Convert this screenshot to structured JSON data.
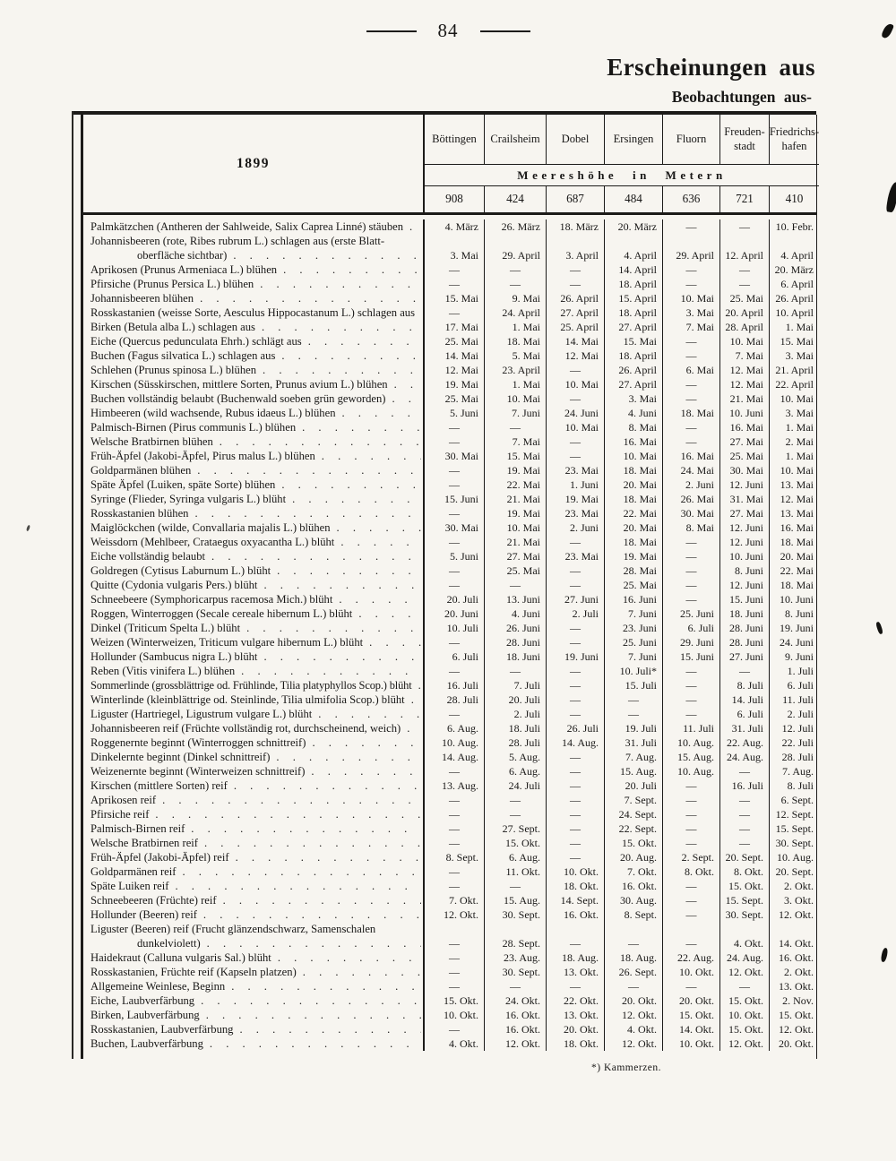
{
  "page": {
    "number": "84",
    "heading": "Erscheinungen aus",
    "subheading": "Beobachtungen aus-",
    "footnote": "*) Kammerzen."
  },
  "table": {
    "year": "1899",
    "elevation_title": "Meereshöhe in Metern",
    "stations": [
      "Böttingen",
      "Crailsheim",
      "Dobel",
      "Ersingen",
      "Fluorn",
      "Freuden-\nstadt",
      "Friedrichs-\nhafen"
    ],
    "elevations": [
      "908",
      "424",
      "687",
      "484",
      "636",
      "721",
      "410"
    ],
    "rows": [
      {
        "label": "Palmkätzchen (Antheren der Sahlweide, Salix Caprea Linné) stäuben",
        "dates": [
          "4. März",
          "26. März",
          "18. März",
          "20. März",
          "—",
          "—",
          "10. Febr."
        ]
      },
      {
        "label": "Johannisbeeren (rote, Ribes rubrum L.) schlagen aus (erste Blatt-",
        "label2": "oberfläche sichtbar)",
        "dates": [
          "3. Mai",
          "29. April",
          "3. April",
          "4. April",
          "29. April",
          "12. April",
          "4. April"
        ]
      },
      {
        "label": "Aprikosen (Prunus Armeniaca L.) blühen",
        "dates": [
          "—",
          "—",
          "—",
          "14. April",
          "—",
          "—",
          "20. März"
        ]
      },
      {
        "label": "Pfirsiche (Prunus Persica L.) blühen",
        "dates": [
          "—",
          "—",
          "—",
          "18. April",
          "—",
          "—",
          "6. April"
        ]
      },
      {
        "label": "Johannisbeeren blühen",
        "dates": [
          "15. Mai",
          "9. Mai",
          "26. April",
          "15. April",
          "10. Mai",
          "25. Mai",
          "26. April"
        ]
      },
      {
        "label": "Rosskastanien (weisse Sorte, Aesculus Hippocastanum L.) schlagen aus",
        "dates": [
          "—",
          "24. April",
          "27. April",
          "18. April",
          "3. Mai",
          "20. April",
          "10. April"
        ]
      },
      {
        "label": "Birken (Betula alba L.) schlagen aus",
        "dates": [
          "17. Mai",
          "1. Mai",
          "25. April",
          "27. April",
          "7. Mai",
          "28. April",
          "1. Mai"
        ]
      },
      {
        "label": "Eiche (Quercus pedunculata Ehrh.) schlägt aus",
        "dates": [
          "25. Mai",
          "18. Mai",
          "14. Mai",
          "15. Mai",
          "—",
          "10. Mai",
          "15. Mai"
        ]
      },
      {
        "label": "Buchen (Fagus silvatica L.) schlagen aus",
        "dates": [
          "14. Mai",
          "5. Mai",
          "12. Mai",
          "18. April",
          "—",
          "7. Mai",
          "3. Mai"
        ]
      },
      {
        "label": "Schlehen (Prunus spinosa L.) blühen",
        "dates": [
          "12. Mai",
          "23. April",
          "—",
          "26. April",
          "6. Mai",
          "12. Mai",
          "21. April"
        ]
      },
      {
        "label": "Kirschen (Süsskirschen, mittlere Sorten, Prunus avium L.) blühen",
        "dates": [
          "19. Mai",
          "1. Mai",
          "10. Mai",
          "27. April",
          "—",
          "12. Mai",
          "22. April"
        ]
      },
      {
        "label": "Buchen vollständig belaubt (Buchenwald soeben grün geworden)",
        "dates": [
          "25. Mai",
          "10. Mai",
          "—",
          "3. Mai",
          "—",
          "21. Mai",
          "10. Mai"
        ]
      },
      {
        "label": "Himbeeren (wild wachsende, Rubus idaeus L.) blühen",
        "dates": [
          "5. Juni",
          "7. Juni",
          "24. Juni",
          "4. Juni",
          "18. Mai",
          "10. Juni",
          "3. Mai"
        ]
      },
      {
        "label": "Palmisch-Birnen (Pirus communis L.) blühen",
        "dates": [
          "—",
          "—",
          "10. Mai",
          "8. Mai",
          "—",
          "16. Mai",
          "1. Mai"
        ]
      },
      {
        "label": "Welsche Bratbirnen blühen",
        "dates": [
          "—",
          "7. Mai",
          "—",
          "16. Mai",
          "—",
          "27. Mai",
          "2. Mai"
        ]
      },
      {
        "label": "Früh-Äpfel (Jakobi-Äpfel, Pirus malus L.) blühen",
        "dates": [
          "30. Mai",
          "15. Mai",
          "—",
          "10. Mai",
          "16. Mai",
          "25. Mai",
          "1. Mai"
        ]
      },
      {
        "label": "Goldparmänen blühen",
        "dates": [
          "—",
          "19. Mai",
          "23. Mai",
          "18. Mai",
          "24. Mai",
          "30. Mai",
          "10. Mai"
        ]
      },
      {
        "label": "Späte Äpfel (Luiken, späte Sorte) blühen",
        "dates": [
          "—",
          "22. Mai",
          "1. Juni",
          "20. Mai",
          "2. Juni",
          "12. Juni",
          "13. Mai"
        ]
      },
      {
        "label": "Syringe (Flieder, Syringa vulgaris L.) blüht",
        "dates": [
          "15. Juni",
          "21. Mai",
          "19. Mai",
          "18. Mai",
          "26. Mai",
          "31. Mai",
          "12. Mai"
        ]
      },
      {
        "label": "Rosskastanien blühen",
        "dates": [
          "—",
          "19. Mai",
          "23. Mai",
          "22. Mai",
          "30. Mai",
          "27. Mai",
          "13. Mai"
        ]
      },
      {
        "label": "Maiglöckchen (wilde, Convallaria majalis L.) blühen",
        "dates": [
          "30. Mai",
          "10. Mai",
          "2. Juni",
          "20. Mai",
          "8. Mai",
          "12. Juni",
          "16. Mai"
        ]
      },
      {
        "label": "Weissdorn (Mehlbeer, Crataegus oxyacantha L.) blüht",
        "dates": [
          "—",
          "21. Mai",
          "—",
          "18. Mai",
          "—",
          "12. Juni",
          "18. Mai"
        ]
      },
      {
        "label": "Eiche vollständig belaubt",
        "dates": [
          "5. Juni",
          "27. Mai",
          "23. Mai",
          "19. Mai",
          "—",
          "10. Juni",
          "20. Mai"
        ]
      },
      {
        "label": "Goldregen (Cytisus Laburnum L.) blüht",
        "dates": [
          "—",
          "25. Mai",
          "—",
          "28. Mai",
          "—",
          "8. Juni",
          "22. Mai"
        ]
      },
      {
        "label": "Quitte (Cydonia vulgaris Pers.) blüht",
        "dates": [
          "—",
          "—",
          "—",
          "25. Mai",
          "—",
          "12. Juni",
          "18. Mai"
        ]
      },
      {
        "label": "Schneebeere (Symphoricarpus racemosa Mich.) blüht",
        "dates": [
          "20. Juli",
          "13. Juni",
          "27. Juni",
          "16. Juni",
          "—",
          "15. Juni",
          "10. Juni"
        ]
      },
      {
        "label": "Roggen, Winterroggen (Secale cereale hibernum L.) blüht",
        "dates": [
          "20. Juni",
          "4. Juni",
          "2. Juli",
          "7. Juni",
          "25. Juni",
          "18. Juni",
          "8. Juni"
        ]
      },
      {
        "label": "Dinkel (Triticum Spelta L.) blüht",
        "dates": [
          "10. Juli",
          "26. Juni",
          "—",
          "23. Juni",
          "6. Juli",
          "28. Juni",
          "19. Juni"
        ]
      },
      {
        "label": "Weizen (Winterweizen, Triticum vulgare hibernum L.) blüht",
        "dates": [
          "—",
          "28. Juni",
          "—",
          "25. Juni",
          "29. Juni",
          "28. Juni",
          "24. Juni"
        ]
      },
      {
        "label": "Hollunder (Sambucus nigra L.) blüht",
        "dates": [
          "6. Juli",
          "18. Juni",
          "19. Juni",
          "7. Juni",
          "15. Juni",
          "27. Juni",
          "9. Juni"
        ]
      },
      {
        "label": "Reben (Vitis vinifera L.) blühen",
        "dates": [
          "—",
          "—",
          "—",
          "10. Juli*",
          "—",
          "—",
          "1. Juli"
        ]
      },
      {
        "label": "Sommerlinde (grossblättrige od. Frühlinde, Tilia platyphyllos Scop.) blüht",
        "dates": [
          "16. Juli",
          "7. Juli",
          "—",
          "15. Juli",
          "—",
          "8. Juli",
          "6. Juli"
        ]
      },
      {
        "label": "Winterlinde (kleinblättrige od. Steinlinde, Tilia ulmifolia Scop.) blüht",
        "dates": [
          "28. Juli",
          "20. Juli",
          "—",
          "—",
          "—",
          "14. Juli",
          "11. Juli"
        ]
      },
      {
        "label": "Liguster (Hartriegel, Ligustrum vulgare L.) blüht",
        "dates": [
          "—",
          "2. Juli",
          "—",
          "—",
          "—",
          "6. Juli",
          "2. Juli"
        ]
      },
      {
        "label": "Johannisbeeren reif (Früchte vollständig rot, durchscheinend, weich)",
        "dates": [
          "6. Aug.",
          "18. Juli",
          "26. Juli",
          "19. Juli",
          "11. Juli",
          "31. Juli",
          "12. Juli"
        ]
      },
      {
        "label": "Roggenernte beginnt (Winterroggen schnittreif)",
        "dates": [
          "10. Aug.",
          "28. Juli",
          "14. Aug.",
          "31. Juli",
          "10. Aug.",
          "22. Aug.",
          "22. Juli"
        ]
      },
      {
        "label": "Dinkelernte beginnt (Dinkel schnittreif)",
        "dates": [
          "14. Aug.",
          "5. Aug.",
          "—",
          "7. Aug.",
          "15. Aug.",
          "24. Aug.",
          "28. Juli"
        ]
      },
      {
        "label": "Weizenernte beginnt (Winterweizen schnittreif)",
        "dates": [
          "—",
          "6. Aug.",
          "—",
          "15. Aug.",
          "10. Aug.",
          "—",
          "7. Aug."
        ]
      },
      {
        "label": "Kirschen (mittlere Sorten) reif",
        "dates": [
          "13. Aug.",
          "24. Juli",
          "—",
          "20. Juli",
          "—",
          "16. Juli",
          "8. Juli"
        ]
      },
      {
        "label": "Aprikosen reif",
        "dates": [
          "—",
          "—",
          "—",
          "7. Sept.",
          "—",
          "—",
          "6. Sept."
        ]
      },
      {
        "label": "Pfirsiche reif",
        "dates": [
          "—",
          "—",
          "—",
          "24. Sept.",
          "—",
          "—",
          "12. Sept."
        ]
      },
      {
        "label": "Palmisch-Birnen reif",
        "dates": [
          "—",
          "27. Sept.",
          "—",
          "22. Sept.",
          "—",
          "—",
          "15. Sept."
        ]
      },
      {
        "label": "Welsche Bratbirnen reif",
        "dates": [
          "—",
          "15. Okt.",
          "—",
          "15. Okt.",
          "—",
          "—",
          "30. Sept."
        ]
      },
      {
        "label": "Früh-Äpfel (Jakobi-Äpfel) reif",
        "dates": [
          "8. Sept.",
          "6. Aug.",
          "—",
          "20. Aug.",
          "2. Sept.",
          "20. Sept.",
          "10. Aug."
        ]
      },
      {
        "label": "Goldparmänen reif",
        "dates": [
          "—",
          "11. Okt.",
          "10. Okt.",
          "7. Okt.",
          "8. Okt.",
          "8. Okt.",
          "20. Sept."
        ]
      },
      {
        "label": "Späte Luiken reif",
        "dates": [
          "—",
          "—",
          "18. Okt.",
          "16. Okt.",
          "—",
          "15. Okt.",
          "2. Okt."
        ]
      },
      {
        "label": "Schneebeeren (Früchte) reif",
        "dates": [
          "7. Okt.",
          "15. Aug.",
          "14. Sept.",
          "30. Aug.",
          "—",
          "15. Sept.",
          "3. Okt."
        ]
      },
      {
        "label": "Hollunder (Beeren) reif",
        "dates": [
          "12. Okt.",
          "30. Sept.",
          "16. Okt.",
          "8. Sept.",
          "—",
          "30. Sept.",
          "12. Okt."
        ]
      },
      {
        "label": "Liguster (Beeren) reif (Frucht glänzendschwarz, Samenschalen",
        "label2": "dunkelviolett)",
        "dates": [
          "—",
          "28. Sept.",
          "—",
          "—",
          "—",
          "4. Okt.",
          "14. Okt."
        ]
      },
      {
        "label": "Haidekraut (Calluna vulgaris Sal.) blüht",
        "dates": [
          "—",
          "23. Aug.",
          "18. Aug.",
          "18. Aug.",
          "22. Aug.",
          "24. Aug.",
          "16. Okt."
        ]
      },
      {
        "label": "Rosskastanien, Früchte reif (Kapseln platzen)",
        "dates": [
          "—",
          "30. Sept.",
          "13. Okt.",
          "26. Sept.",
          "10. Okt.",
          "12. Okt.",
          "2. Okt."
        ]
      },
      {
        "label": "Allgemeine Weinlese, Beginn",
        "dates": [
          "—",
          "—",
          "—",
          "—",
          "—",
          "—",
          "13. Okt."
        ]
      },
      {
        "label": "Eiche, Laubverfärbung",
        "dates": [
          "15. Okt.",
          "24. Okt.",
          "22. Okt.",
          "20. Okt.",
          "20. Okt.",
          "15. Okt.",
          "2. Nov."
        ]
      },
      {
        "label": "Birken, Laubverfärbung",
        "dates": [
          "10. Okt.",
          "16. Okt.",
          "13. Okt.",
          "12. Okt.",
          "15. Okt.",
          "10. Okt.",
          "15. Okt."
        ]
      },
      {
        "label": "Rosskastanien, Laubverfärbung",
        "dates": [
          "—",
          "16. Okt.",
          "20. Okt.",
          "4. Okt.",
          "14. Okt.",
          "15. Okt.",
          "12. Okt."
        ]
      },
      {
        "label": "Buchen, Laubverfärbung",
        "dates": [
          "4. Okt.",
          "12. Okt.",
          "18. Okt.",
          "12. Okt.",
          "10. Okt.",
          "12. Okt.",
          "20. Okt."
        ]
      }
    ]
  }
}
